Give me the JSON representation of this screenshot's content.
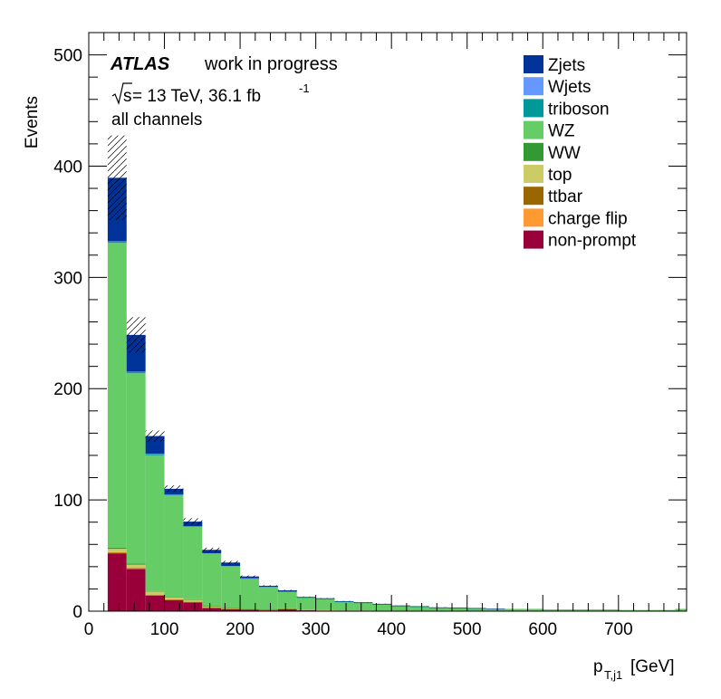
{
  "chart_data": {
    "type": "stacked-histogram",
    "experiment": "ATLAS",
    "status": "work in progress",
    "energy_text": "s",
    "energy_rest": " = 13 TeV, 36.1 fb",
    "energy_sup": "-1",
    "channel": "all channels",
    "ylabel": "Events",
    "xlabel_main": "p",
    "xlabel_sub": "T,j1",
    "xlabel_unit": " [GeV]",
    "xlim": [
      0,
      790
    ],
    "ylim": [
      0,
      520
    ],
    "x_ticks": [
      "0",
      "100",
      "200",
      "300",
      "400",
      "500",
      "600",
      "700"
    ],
    "x_tick_values": [
      0,
      100,
      200,
      300,
      400,
      500,
      600,
      700
    ],
    "y_ticks": [
      "0",
      "100",
      "200",
      "300",
      "400",
      "500"
    ],
    "y_tick_values": [
      0,
      100,
      200,
      300,
      400,
      500
    ],
    "bin_edges": [
      25,
      50,
      75,
      100,
      125,
      150,
      175,
      200,
      225,
      250,
      275,
      300,
      325,
      350,
      375,
      400,
      425,
      450,
      475,
      500,
      525,
      550,
      575,
      600,
      625,
      650,
      675,
      700,
      725,
      750,
      775,
      790
    ],
    "series": [
      {
        "name": "non-prompt",
        "color": "#99003a",
        "values": [
          52,
          38,
          14,
          10,
          8,
          3,
          2,
          1.5,
          1,
          2,
          1,
          0.8,
          0.5,
          0.5,
          0.3,
          0.3,
          0.2,
          0.2,
          0.1,
          0.1,
          0.1,
          0.1,
          0.1,
          0.1,
          0.1,
          0.1,
          0.1,
          0.1,
          0.1,
          0.1,
          0.1
        ]
      },
      {
        "name": "charge flip",
        "color": "#ff9a33",
        "values": [
          0.5,
          0.5,
          0.3,
          0.3,
          0.2,
          0.1,
          0.1,
          0.1,
          0.1,
          0.1,
          0,
          0,
          0,
          0,
          0,
          0,
          0,
          0,
          0,
          0,
          0,
          0,
          0,
          0,
          0,
          0,
          0,
          0,
          0,
          0,
          0
        ]
      },
      {
        "name": "ttbar",
        "color": "#996600",
        "values": [
          0.5,
          0.3,
          0.3,
          0.2,
          0.2,
          0.1,
          0.1,
          0.1,
          0.1,
          0,
          0,
          0,
          0,
          0,
          0,
          0,
          0,
          0,
          0,
          0,
          0,
          0,
          0,
          0,
          0,
          0,
          0,
          0,
          0,
          0,
          0
        ]
      },
      {
        "name": "top",
        "color": "#cccc66",
        "values": [
          3,
          3,
          3,
          2,
          2,
          1,
          0.8,
          0.5,
          0.3,
          0.3,
          0.2,
          0.1,
          0.1,
          0.1,
          0,
          0,
          0,
          0,
          0,
          0,
          0,
          0,
          0,
          0,
          0,
          0,
          0,
          0,
          0,
          0,
          0
        ]
      },
      {
        "name": "WW",
        "color": "#339933",
        "values": [
          1,
          1,
          0.5,
          0.5,
          0.3,
          0.3,
          0.2,
          0.1,
          0.1,
          0.1,
          0,
          0,
          0,
          0,
          0,
          0,
          0,
          0,
          0,
          0,
          0,
          0,
          0,
          0,
          0,
          0,
          0,
          0,
          0,
          0,
          0
        ]
      },
      {
        "name": "WZ",
        "color": "#66cc66",
        "values": [
          274,
          171,
          122,
          91,
          65,
          47,
          37,
          27,
          20,
          15,
          11,
          10,
          8,
          7,
          6,
          4.5,
          4,
          3,
          3,
          2.5,
          2,
          2,
          2,
          1.5,
          1.5,
          1.5,
          1.5,
          1,
          1,
          1,
          2
        ]
      },
      {
        "name": "triboson",
        "color": "#009999",
        "values": [
          1,
          1,
          1,
          0.8,
          0.6,
          0.5,
          0.4,
          0.3,
          0.3,
          0.2,
          0.2,
          0.2,
          0.1,
          0.1,
          0.1,
          0.1,
          0.1,
          0.1,
          0.1,
          0.1,
          0,
          0,
          0,
          0,
          0,
          0,
          0,
          0,
          0,
          0,
          0
        ]
      },
      {
        "name": "Wjets",
        "color": "#6699ff",
        "values": [
          0.5,
          0.5,
          0.3,
          0.2,
          0.2,
          0.1,
          0.1,
          0.1,
          0.1,
          0,
          0,
          0,
          0,
          0,
          0,
          0,
          0,
          0,
          0,
          0,
          0,
          0,
          0,
          0,
          0,
          0,
          0,
          0,
          0,
          0,
          0
        ]
      },
      {
        "name": "Zjets",
        "color": "#003399",
        "values": [
          57,
          33,
          16,
          5,
          4,
          3,
          3,
          1.5,
          0.8,
          1,
          0.5,
          0.5,
          0.3,
          0.3,
          0.2,
          0.2,
          0.1,
          0.1,
          0.1,
          0.1,
          0.1,
          0,
          0,
          0,
          0,
          0,
          0,
          0,
          0,
          0,
          0
        ]
      }
    ],
    "uncertainty": [
      38,
      16,
      5,
      3,
      3,
      2,
      1.5,
      0.8,
      0.5,
      0.5,
      0.3,
      0.2,
      0.2,
      0.2,
      0.1,
      0.1,
      0.1,
      0.1,
      0,
      0,
      0,
      0,
      0,
      0,
      0,
      0,
      0,
      0,
      0,
      0,
      0
    ],
    "legend": [
      "Zjets",
      "Wjets",
      "triboson",
      "WZ",
      "WW",
      "top",
      "ttbar",
      "charge flip",
      "non-prompt"
    ]
  }
}
